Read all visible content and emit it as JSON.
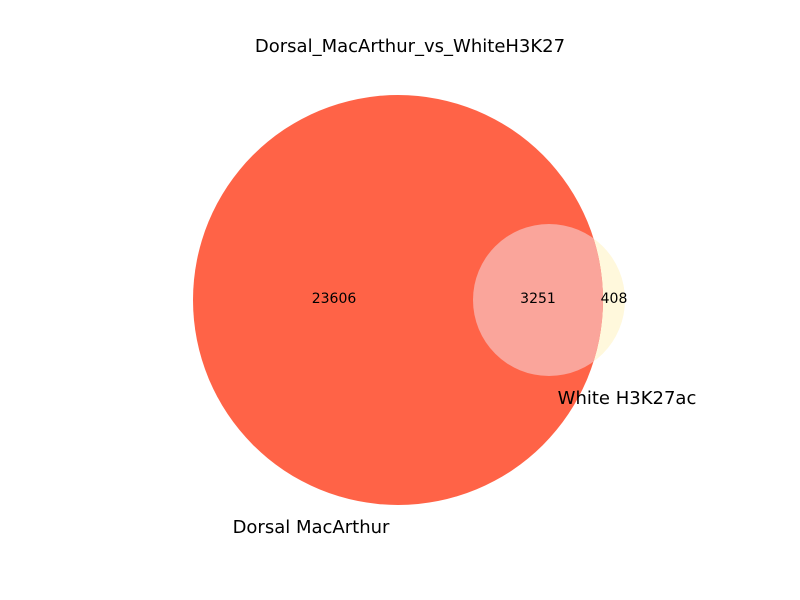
{
  "chart_data": {
    "type": "venn",
    "title": "Dorsal_MacArthur_vs_WhiteH3K27",
    "sets": [
      {
        "name": "Dorsal MacArthur",
        "only_count": 23606,
        "color": "#ff6347"
      },
      {
        "name": "White H3K27ac",
        "only_count": 408,
        "color": "#fff8dc"
      }
    ],
    "intersection": {
      "count": 3251,
      "color": "#faa59b"
    }
  }
}
